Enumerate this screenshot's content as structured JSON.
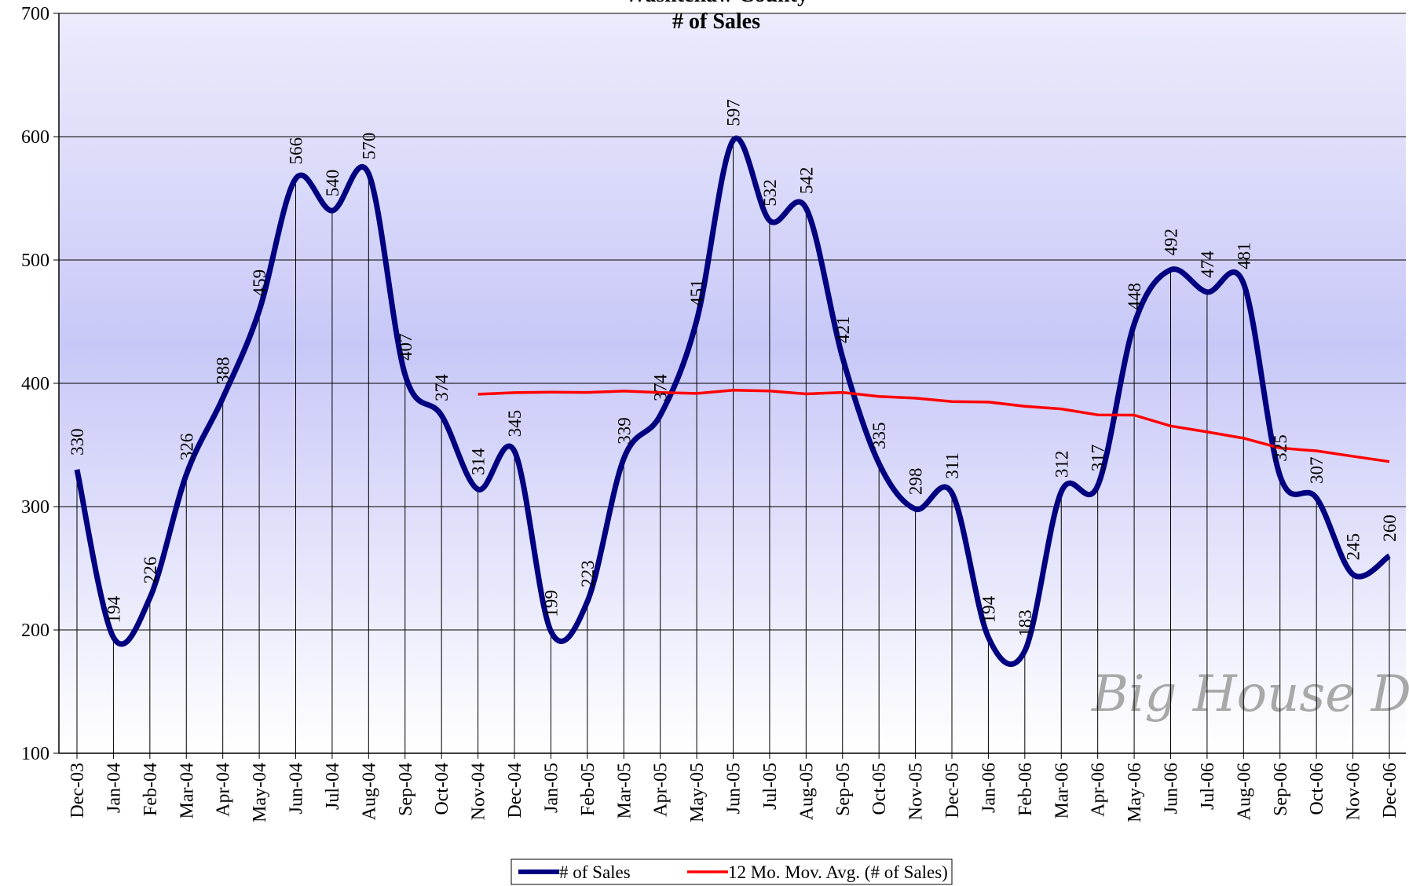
{
  "chart_data": {
    "type": "line",
    "title": "Washtenaw County",
    "subtitle": "# of Sales",
    "annotation": "Big House Data",
    "categories": [
      "Dec-03",
      "Jan-04",
      "Feb-04",
      "Mar-04",
      "Apr-04",
      "May-04",
      "Jun-04",
      "Jul-04",
      "Aug-04",
      "Sep-04",
      "Oct-04",
      "Nov-04",
      "Dec-04",
      "Jan-05",
      "Feb-05",
      "Mar-05",
      "Apr-05",
      "May-05",
      "Jun-05",
      "Jul-05",
      "Aug-05",
      "Sep-05",
      "Oct-05",
      "Nov-05",
      "Dec-05",
      "Jan-06",
      "Feb-06",
      "Mar-06",
      "Apr-06",
      "May-06",
      "Jun-06",
      "Jul-06",
      "Aug-06",
      "Sep-06",
      "Oct-06",
      "Nov-06",
      "Dec-06"
    ],
    "series": [
      {
        "name": "# of Sales",
        "color": "#000080",
        "smooth": true,
        "data_labels": true,
        "values": [
          330,
          194,
          226,
          326,
          388,
          459,
          566,
          540,
          570,
          407,
          374,
          314,
          345,
          199,
          223,
          339,
          374,
          451,
          597,
          532,
          542,
          421,
          335,
          298,
          311,
          194,
          183,
          312,
          317,
          448,
          492,
          474,
          481,
          325,
          307,
          245,
          260
        ]
      },
      {
        "name": "12 Mo. Mov. Avg. (# of Sales)",
        "color": "#ff0000",
        "smooth": false,
        "data_labels": false,
        "values": [
          null,
          null,
          null,
          null,
          null,
          null,
          null,
          null,
          null,
          null,
          null,
          391.2,
          392.4,
          392.8,
          392.6,
          393.7,
          392.5,
          391.8,
          394.4,
          393.8,
          391.4,
          392.6,
          389.3,
          388,
          385.2,
          384.8,
          381.4,
          379.2,
          374.4,
          374.2,
          365.4,
          360.6,
          355.5,
          347.5,
          345.2,
          340.8,
          336.5
        ]
      }
    ],
    "ylim": [
      100,
      700
    ],
    "yticks": [
      100,
      200,
      300,
      400,
      500,
      600,
      700
    ],
    "grid": true,
    "drop_lines": true,
    "legend": "bottom"
  }
}
